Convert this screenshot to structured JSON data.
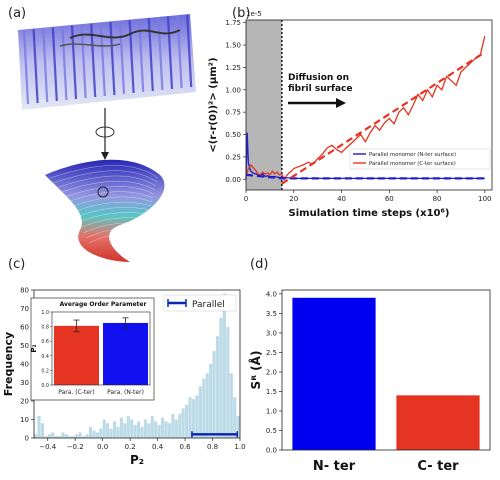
{
  "panel_labels": [
    "(a)",
    "(b)",
    "(c)",
    "(d)"
  ],
  "chart_data": [
    {
      "panel": "(b)",
      "type": "line",
      "xlabel": "Simulation time steps (x10⁶)",
      "ylabel": "<(r-r(0))²> (μm²)",
      "scale_label": "1e-5",
      "xlim": [
        0,
        103
      ],
      "ylim": [
        -0.12,
        1.78
      ],
      "xticks": [
        0,
        20,
        40,
        60,
        80,
        100
      ],
      "yticks": [
        0.0,
        0.25,
        0.5,
        0.75,
        1.0,
        1.25,
        1.5,
        1.75
      ],
      "shaded_region": [
        0,
        15
      ],
      "dotted_line_x": 15,
      "annotation": "Diffusion on fibril surface",
      "legend_position": "right",
      "colors": {
        "n_ter": "#1f1fcc",
        "c_ter": "#e53422",
        "shade": "#9d9d9d"
      },
      "series": [
        {
          "name": "Parallel monomer (N-ter surface)",
          "color": "#1f1fcc",
          "x": [
            0,
            0.5,
            1,
            2,
            3,
            4,
            5,
            6,
            7,
            8,
            9,
            10,
            12,
            14,
            16,
            20,
            25,
            30,
            35,
            40,
            45,
            50,
            55,
            60,
            65,
            70,
            75,
            80,
            85,
            90,
            95,
            100
          ],
          "y": [
            0.0,
            0.52,
            0.18,
            0.09,
            0.07,
            0.06,
            0.05,
            0.04,
            0.06,
            0.03,
            0.04,
            0.03,
            0.03,
            0.02,
            0.02,
            0.01,
            0.01,
            0.01,
            0.01,
            0.01,
            0.01,
            0.01,
            0.01,
            0.01,
            0.01,
            0.01,
            0.01,
            0.01,
            0.01,
            0.01,
            0.01,
            0.01
          ]
        },
        {
          "name": "Parallel monomer (C-ter surface)",
          "color": "#e53422",
          "x": [
            0,
            1,
            2,
            3,
            4,
            5,
            6,
            7,
            8,
            9,
            10,
            11,
            12,
            13,
            14,
            15,
            16,
            17,
            18,
            19,
            20,
            22,
            24,
            26,
            28,
            30,
            32,
            34,
            36,
            38,
            40,
            42,
            44,
            46,
            48,
            50,
            52,
            54,
            56,
            58,
            60,
            62,
            64,
            66,
            68,
            70,
            72,
            74,
            76,
            78,
            80,
            82,
            84,
            86,
            88,
            90,
            92,
            94,
            96,
            98,
            100
          ],
          "y": [
            0.03,
            0.12,
            0.16,
            0.13,
            0.1,
            0.06,
            0.05,
            0.08,
            0.06,
            0.07,
            0.05,
            0.09,
            0.06,
            0.08,
            0.05,
            0.06,
            0.0,
            0.04,
            0.07,
            0.09,
            0.12,
            0.14,
            0.16,
            0.19,
            0.17,
            0.23,
            0.28,
            0.35,
            0.38,
            0.33,
            0.3,
            0.35,
            0.4,
            0.45,
            0.5,
            0.42,
            0.52,
            0.6,
            0.55,
            0.63,
            0.68,
            0.62,
            0.75,
            0.8,
            0.72,
            0.83,
            0.95,
            0.88,
            1.0,
            0.92,
            1.05,
            1.0,
            1.15,
            1.1,
            1.05,
            1.2,
            1.25,
            1.3,
            1.35,
            1.38,
            1.6
          ]
        },
        {
          "name": "Parallel monomer (N-ter surface) fit",
          "color": "#1f1fcc",
          "dashed": true,
          "x": [
            0,
            15,
            100
          ],
          "y": [
            0.05,
            0.01,
            0.01
          ]
        },
        {
          "name": "Parallel monomer (C-ter surface) fit",
          "color": "#e53422",
          "dashed": true,
          "x": [
            15,
            100
          ],
          "y": [
            -0.05,
            1.42
          ]
        }
      ]
    },
    {
      "panel": "(c)",
      "type": "bar",
      "xlabel": "P₂",
      "ylabel": "Frequency",
      "xlim": [
        -0.5,
        1.0
      ],
      "ylim": [
        0,
        80
      ],
      "xticks": [
        -0.4,
        -0.2,
        0.0,
        0.2,
        0.4,
        0.6,
        0.8,
        1.0
      ],
      "xtick_labels": [
        "−0.4",
        "−0.2",
        "0.0",
        "0.2",
        "0.4",
        "0.6",
        "0.8",
        "1.0"
      ],
      "yticks": [
        0,
        10,
        20,
        30,
        40,
        50,
        60,
        70,
        80
      ],
      "bar_color": "#bcdbe6",
      "bin_width": 0.025,
      "bins_start": -0.5,
      "values": [
        2,
        12,
        8,
        1,
        2,
        3,
        1,
        1,
        3,
        2,
        1,
        1,
        2,
        3,
        1,
        2,
        6,
        4,
        3,
        5,
        10,
        8,
        5,
        9,
        6,
        11,
        8,
        12,
        10,
        7,
        9,
        6,
        10,
        8,
        12,
        9,
        7,
        11,
        9,
        8,
        13,
        10,
        13,
        16,
        18,
        22,
        21,
        23,
        28,
        32,
        35,
        40,
        47,
        55,
        65,
        78,
        60,
        35,
        22,
        12
      ],
      "legend": "Parallel",
      "legend_position": "top-right",
      "range_marker": {
        "x": [
          0.65,
          0.98
        ],
        "y": 2,
        "color": "#0a23b0"
      }
    },
    {
      "panel": "(c) inset",
      "type": "bar",
      "title": "Average Order Parameter",
      "ylabel": "P₂",
      "ylim": [
        0.0,
        1.0
      ],
      "yticks": [
        0.0,
        0.2,
        0.4,
        0.6,
        0.8,
        1.0
      ],
      "categories": [
        "Para. (C-ter)",
        "Para. (N-ter)"
      ],
      "values": [
        0.81,
        0.85
      ],
      "errors": [
        0.08,
        0.07
      ],
      "colors": [
        "#e53422",
        "#1010f0"
      ]
    },
    {
      "panel": "(d)",
      "type": "bar",
      "ylabel": "Sᴿ (Å)",
      "ylim": [
        0,
        4.1
      ],
      "yticks": [
        0.0,
        0.5,
        1.0,
        1.5,
        2.0,
        2.5,
        3.0,
        3.5,
        4.0
      ],
      "categories": [
        "N- ter",
        "C- ter"
      ],
      "values": [
        3.9,
        1.4
      ],
      "colors": [
        "#0000f0",
        "#e53422"
      ]
    }
  ]
}
